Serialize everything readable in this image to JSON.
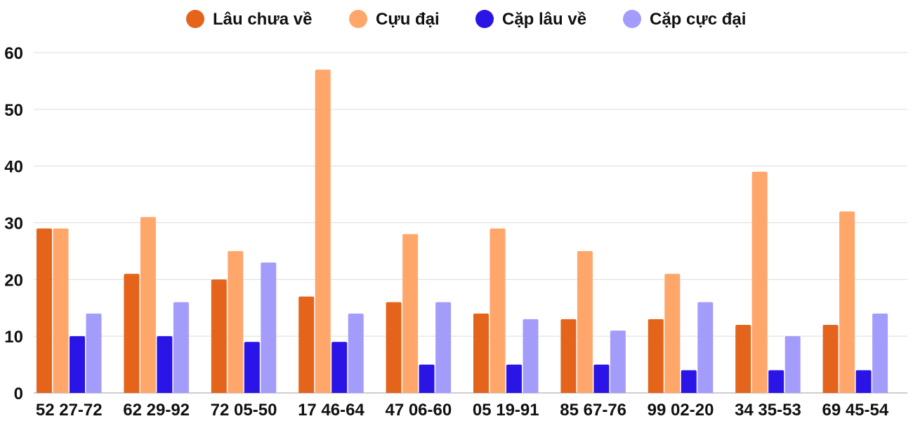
{
  "chart_data": {
    "type": "bar",
    "title": "",
    "xlabel": "",
    "ylabel": "",
    "ylim": [
      0,
      60
    ],
    "yticks": [
      0,
      10,
      20,
      30,
      40,
      50,
      60
    ],
    "grid": true,
    "legend_position": "top-center",
    "categories": [
      "52 27-72",
      "62 29-92",
      "72 05-50",
      "17 46-64",
      "47 06-60",
      "05 19-91",
      "85 67-76",
      "99 02-20",
      "34 35-53",
      "69 45-54"
    ],
    "series": [
      {
        "name": "Lâu chưa về",
        "color": "#e3641a",
        "values": [
          29,
          21,
          20,
          17,
          16,
          14,
          13,
          13,
          12,
          12
        ]
      },
      {
        "name": "Cựu đại",
        "color": "#ffa66b",
        "values": [
          29,
          31,
          25,
          57,
          28,
          29,
          25,
          21,
          39,
          32
        ]
      },
      {
        "name": "Cặp lâu về",
        "color": "#2a14e6",
        "values": [
          10,
          10,
          9,
          9,
          5,
          5,
          5,
          4,
          4,
          4
        ]
      },
      {
        "name": "Cặp cực đại",
        "color": "#a39cfa",
        "values": [
          14,
          16,
          23,
          14,
          16,
          13,
          11,
          16,
          10,
          14
        ]
      }
    ]
  }
}
